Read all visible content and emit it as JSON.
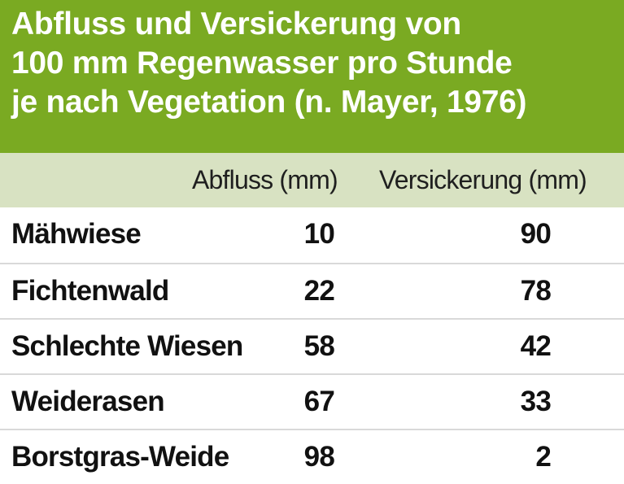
{
  "chart_data": {
    "type": "table",
    "title_lines": [
      "Abfluss und Versickerung von",
      "100 mm Regenwasser pro Stunde",
      "je nach Vegetation (n. Mayer, 1976)"
    ],
    "columns": [
      "",
      "Abfluss (mm)",
      "Versickerung (mm)"
    ],
    "rows": [
      {
        "name": "Mähwiese",
        "abfluss": 10,
        "versickerung": 90
      },
      {
        "name": "Fichtenwald",
        "abfluss": 22,
        "versickerung": 78
      },
      {
        "name": "Schlechte Wiesen",
        "abfluss": 58,
        "versickerung": 42
      },
      {
        "name": "Weiderasen",
        "abfluss": 67,
        "versickerung": 33
      },
      {
        "name": "Borstgras-Weide",
        "abfluss": 98,
        "versickerung": 2
      }
    ]
  },
  "colors": {
    "title_background": "#7aaa22",
    "header_background": "#d8e2c2",
    "row_divider": "#d9d9d9"
  }
}
